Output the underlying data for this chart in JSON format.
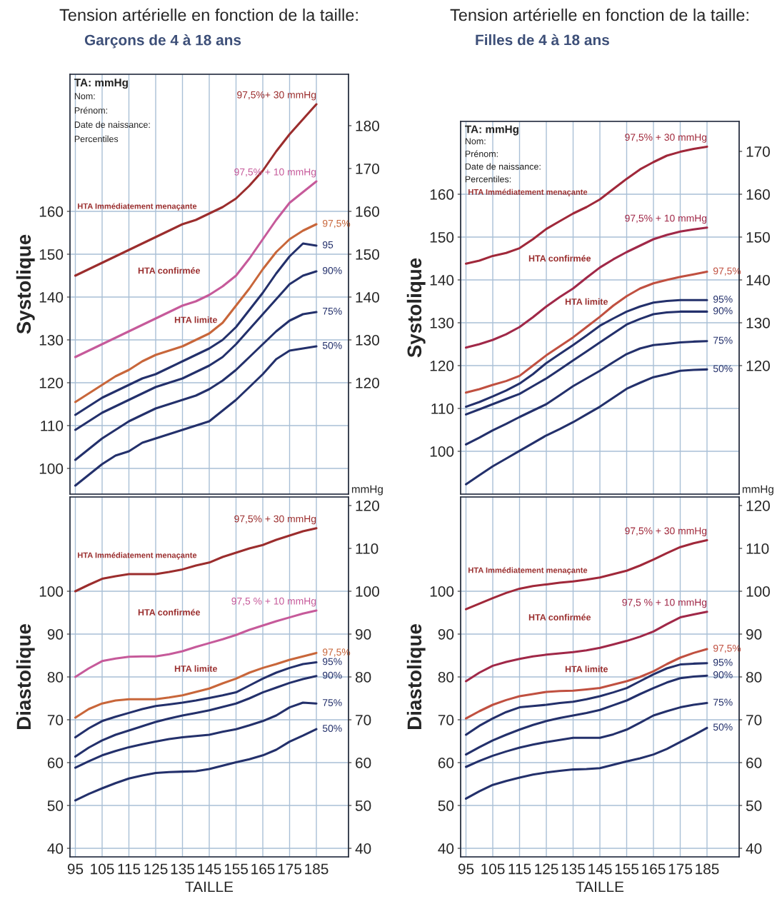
{
  "chart_data": [
    {
      "type": "line",
      "title": "Tension artérielle en fonction de la taille:",
      "subtitle": "Garçons de 4 à 18 ans",
      "ylabel": "Systolique",
      "x": [
        95,
        100,
        105,
        110,
        115,
        120,
        125,
        130,
        135,
        140,
        145,
        150,
        155,
        160,
        165,
        170,
        175,
        180,
        185
      ],
      "series": [
        {
          "name": "97,5%+ 30 mmHg",
          "color": "#9b2d2d",
          "values": [
            145,
            146.5,
            148,
            149.5,
            151,
            152.5,
            154,
            155.5,
            157,
            158,
            159.5,
            161,
            163,
            166,
            169.5,
            174,
            178,
            181.5,
            185
          ]
        },
        {
          "name": "97,5% + 10 mmHg",
          "color": "#c65a9a",
          "values": [
            126,
            127.5,
            129,
            130.5,
            132,
            133.5,
            135,
            136.5,
            138,
            139,
            140.5,
            142.5,
            145,
            149,
            153.5,
            158,
            162,
            164.5,
            167
          ]
        },
        {
          "name": "97,5%",
          "color": "#c8663a",
          "values": [
            115.5,
            117.5,
            119.5,
            121.5,
            123,
            125,
            126.5,
            127.5,
            128.5,
            130,
            131.5,
            134,
            138,
            142,
            146.5,
            150.5,
            153.5,
            155.5,
            157
          ]
        },
        {
          "name": "95",
          "color": "#23306b",
          "values": [
            112.5,
            114.5,
            116.5,
            118,
            119.5,
            121,
            122,
            123.5,
            125,
            126.5,
            128,
            130,
            133,
            137,
            141,
            145.5,
            149.5,
            152.5,
            152
          ]
        },
        {
          "name": "90%",
          "color": "#23306b",
          "values": [
            109,
            111,
            113,
            114.5,
            116,
            117.5,
            119,
            120,
            121,
            122.5,
            124,
            126,
            129,
            132.5,
            136,
            139.5,
            143,
            145,
            146
          ]
        },
        {
          "name": "75%",
          "color": "#23306b",
          "values": [
            102,
            104.5,
            107,
            109,
            111,
            112.5,
            114,
            115,
            116,
            117,
            118.5,
            120.5,
            123,
            126,
            129,
            132,
            134.5,
            136,
            136.5
          ]
        },
        {
          "name": "50%",
          "color": "#23306b",
          "values": [
            96,
            98.5,
            101,
            103,
            104,
            106,
            107,
            108,
            109,
            110,
            111,
            113.5,
            116,
            119,
            122,
            125.5,
            127.5,
            128,
            128.5
          ]
        }
      ],
      "xlim": [
        93,
        197
      ],
      "xticks": [
        95,
        105,
        115,
        125,
        135,
        145,
        155,
        165,
        175,
        185
      ],
      "ylim": [
        94,
        192
      ],
      "yticks": [
        100,
        110,
        120,
        130,
        140,
        150,
        160
      ],
      "y2lim": [
        94,
        192
      ],
      "y2ticks": [
        120,
        130,
        140,
        150,
        160,
        170,
        180
      ],
      "tick_labels": "y",
      "grid": true,
      "annotations": [
        "TA: mmHg",
        "Nom:",
        "Prénom:",
        "Date de naissance:",
        "Percentiles",
        "HTA Immédiatement menaçante",
        "HTA confirmée",
        "HTA limite"
      ]
    },
    {
      "type": "line",
      "ylabel": "Diastolique",
      "xlabel": "TAILLE",
      "y2label": "mmHg",
      "x": [
        95,
        100,
        105,
        110,
        115,
        120,
        125,
        130,
        135,
        140,
        145,
        150,
        155,
        160,
        165,
        170,
        175,
        180,
        185
      ],
      "series": [
        {
          "name": "97,5% + 30 mmHg",
          "color": "#9b2d2d",
          "values": [
            100,
            101.5,
            102.9,
            103.5,
            104,
            104,
            104,
            104.5,
            105.1,
            106,
            106.7,
            108,
            109,
            110,
            110.8,
            112,
            113,
            114,
            114.7
          ]
        },
        {
          "name": "97,5 % + 10 mmHg",
          "color": "#c65a9a",
          "values": [
            80,
            82,
            83.7,
            84.3,
            84.7,
            84.8,
            84.8,
            85.3,
            86,
            87,
            87.9,
            88.8,
            89.8,
            91,
            92,
            93,
            93.9,
            94.8,
            95.5
          ]
        },
        {
          "name": "97,5%",
          "color": "#c8663a",
          "values": [
            70.5,
            72.5,
            73.8,
            74.5,
            74.8,
            74.8,
            74.8,
            75.2,
            75.7,
            76.5,
            77.3,
            78.5,
            79.6,
            81,
            82.1,
            83,
            84,
            84.8,
            85.6
          ]
        },
        {
          "name": "95%",
          "color": "#23306b",
          "values": [
            65.9,
            68,
            69.7,
            70.7,
            71.6,
            72.5,
            73.2,
            73.6,
            74,
            74.5,
            75.1,
            75.7,
            76.4,
            78,
            79.6,
            81,
            82.1,
            83,
            83.4
          ]
        },
        {
          "name": "90%",
          "color": "#23306b",
          "values": [
            61.4,
            63.5,
            65.2,
            66.5,
            67.5,
            68.5,
            69.5,
            70.3,
            71,
            71.6,
            72.2,
            73,
            73.8,
            75,
            76.4,
            77.5,
            78.6,
            79.5,
            80.2
          ]
        },
        {
          "name": "75%",
          "color": "#23306b",
          "values": [
            58.8,
            60.3,
            61.7,
            62.7,
            63.6,
            64.3,
            64.9,
            65.5,
            65.9,
            66.2,
            66.5,
            67.2,
            67.8,
            68.7,
            69.7,
            71,
            72.9,
            74,
            73.8
          ]
        },
        {
          "name": "50%",
          "color": "#23306b",
          "values": [
            51.2,
            52.7,
            54,
            55.2,
            56.3,
            57,
            57.6,
            57.8,
            57.9,
            58,
            58.5,
            59.3,
            60.1,
            60.8,
            61.7,
            63,
            64.9,
            66.3,
            67.8
          ]
        }
      ],
      "xlim": [
        93,
        197
      ],
      "xticks": [
        95,
        105,
        115,
        125,
        135,
        145,
        155,
        165,
        175,
        185
      ],
      "ylim": [
        38,
        122
      ],
      "yticks": [
        40,
        50,
        60,
        70,
        80,
        90,
        100
      ],
      "y2lim": [
        38,
        122
      ],
      "y2ticks": [
        40,
        50,
        60,
        70,
        80,
        90,
        100,
        110,
        120
      ],
      "grid": true,
      "annotations": [
        "HTA Immédiatement menaçante",
        "HTA confirmée",
        "HTA limite"
      ]
    },
    {
      "type": "line",
      "title": "Tension artérielle en fonction de la taille:",
      "subtitle": "Filles de 4 à 18 ans",
      "ylabel": "Systolique",
      "x": [
        95,
        100,
        105,
        110,
        115,
        120,
        125,
        130,
        135,
        140,
        145,
        150,
        155,
        160,
        165,
        170,
        175,
        180,
        185
      ],
      "series": [
        {
          "name": "97,5% + 30 mmHg",
          "color": "#a0283a",
          "values": [
            143.8,
            144.5,
            145.6,
            146.3,
            147.4,
            149.5,
            151.9,
            153.7,
            155.5,
            157,
            158.8,
            161.2,
            163.6,
            165.8,
            167.5,
            169,
            169.9,
            170.6,
            171.1
          ]
        },
        {
          "name": "97,5% + 10 mmHg",
          "color": "#a02848",
          "values": [
            124.2,
            125,
            126,
            127.3,
            129,
            131.3,
            133.8,
            136,
            138,
            140.5,
            142.9,
            144.8,
            146.5,
            148,
            149.5,
            150.5,
            151.3,
            151.8,
            152.2
          ]
        },
        {
          "name": "97,5%",
          "color": "#c05040",
          "values": [
            113.7,
            114.5,
            115.5,
            116.4,
            117.6,
            120,
            122.4,
            124.5,
            126.6,
            129,
            131.4,
            134,
            136.2,
            138,
            139.2,
            140,
            140.7,
            141.3,
            141.9
          ]
        },
        {
          "name": "95%",
          "color": "#23306b",
          "values": [
            110.4,
            111.5,
            112.8,
            114.2,
            115.8,
            118,
            120.6,
            122.7,
            124.8,
            127,
            129.3,
            131,
            132.6,
            133.8,
            134.7,
            135.1,
            135.3,
            135.3,
            135.3
          ]
        },
        {
          "name": "90%",
          "color": "#23306b",
          "values": [
            108.6,
            109.8,
            111,
            112.2,
            113.4,
            115.2,
            117,
            119.1,
            121.2,
            123.3,
            125.4,
            127.5,
            129.6,
            130.9,
            132,
            132.4,
            132.6,
            132.6,
            132.6
          ]
        },
        {
          "name": "75%",
          "color": "#23306b",
          "values": [
            101.6,
            103.2,
            104.9,
            106.4,
            108,
            109.5,
            111,
            113.1,
            115.2,
            117,
            118.8,
            120.8,
            122.7,
            124,
            124.8,
            125.1,
            125.4,
            125.6,
            125.7
          ]
        },
        {
          "name": "50%",
          "color": "#23306b",
          "values": [
            92.3,
            94.4,
            96.5,
            98.3,
            100.1,
            101.9,
            103.7,
            105.2,
            106.8,
            108.6,
            110.4,
            112.5,
            114.6,
            116,
            117.3,
            118,
            118.8,
            119,
            119.1
          ]
        }
      ],
      "xlim": [
        93,
        197
      ],
      "xticks": [
        95,
        105,
        115,
        125,
        135,
        145,
        155,
        165,
        175,
        185
      ],
      "ylim": [
        90,
        177
      ],
      "yticks": [
        100,
        110,
        120,
        130,
        140,
        150,
        160
      ],
      "y2lim": [
        90,
        177
      ],
      "y2ticks": [
        120,
        130,
        140,
        150,
        160,
        170
      ],
      "tick_labels": "y",
      "grid": true,
      "annotations": [
        "TA: mmHg",
        "Nom:",
        "Prénom:",
        "Date de naissance:",
        "Percentiles:",
        "HTA Immédiatement menaçante",
        "HTA confirmée",
        "HTA limite"
      ]
    },
    {
      "type": "line",
      "ylabel": "Diastolique",
      "xlabel": "TAILLE",
      "y2label": "mmHg",
      "x": [
        95,
        100,
        105,
        110,
        115,
        120,
        125,
        130,
        135,
        140,
        145,
        150,
        155,
        160,
        165,
        170,
        175,
        180,
        185
      ],
      "series": [
        {
          "name": "97,5% + 30 mmHg",
          "color": "#a0283a",
          "values": [
            95.8,
            97.1,
            98.4,
            99.6,
            100.6,
            101.2,
            101.6,
            102,
            102.3,
            102.7,
            103.2,
            104,
            104.8,
            106,
            107.4,
            108.9,
            110.3,
            111.2,
            111.9
          ]
        },
        {
          "name": "97,5 % + 10 mmHg",
          "color": "#a02848",
          "values": [
            79,
            81,
            82.6,
            83.5,
            84.2,
            84.8,
            85.2,
            85.5,
            85.8,
            86.2,
            86.8,
            87.6,
            88.4,
            89.4,
            90.6,
            92.3,
            93.9,
            94.6,
            95.2
          ]
        },
        {
          "name": "97,5%",
          "color": "#c05040",
          "values": [
            70.3,
            72,
            73.5,
            74.6,
            75.5,
            76,
            76.5,
            76.7,
            76.8,
            77.1,
            77.4,
            78.2,
            79,
            80,
            81.3,
            83,
            84.5,
            85.6,
            86.5
          ]
        },
        {
          "name": "95%",
          "color": "#23306b",
          "values": [
            66.5,
            68.6,
            70.3,
            71.8,
            72.9,
            73.2,
            73.5,
            73.9,
            74.2,
            74.8,
            75.5,
            76.4,
            77.4,
            79,
            80.6,
            82,
            82.9,
            83.1,
            83.2
          ]
        },
        {
          "name": "90%",
          "color": "#23306b",
          "values": [
            61.9,
            63.6,
            65.2,
            66.5,
            67.7,
            68.8,
            69.7,
            70.4,
            71,
            71.6,
            72.3,
            73.4,
            74.5,
            76,
            77.4,
            78.7,
            79.7,
            80.1,
            80.3
          ]
        },
        {
          "name": "75%",
          "color": "#23306b",
          "values": [
            59,
            60.4,
            61.6,
            62.6,
            63.5,
            64.2,
            64.8,
            65.3,
            65.8,
            65.8,
            65.8,
            66.6,
            67.7,
            69.3,
            71,
            72,
            72.9,
            73.5,
            73.9
          ]
        },
        {
          "name": "50%",
          "color": "#23306b",
          "values": [
            51.6,
            53.3,
            54.8,
            55.7,
            56.5,
            57.2,
            57.7,
            58.1,
            58.4,
            58.5,
            58.7,
            59.5,
            60.3,
            61,
            61.9,
            63.2,
            64.8,
            66.4,
            68.1
          ]
        }
      ],
      "xlim": [
        93,
        197
      ],
      "xticks": [
        95,
        105,
        115,
        125,
        135,
        145,
        155,
        165,
        175,
        185
      ],
      "ylim": [
        38,
        122
      ],
      "yticks": [
        40,
        50,
        60,
        70,
        80,
        90,
        100
      ],
      "y2lim": [
        38,
        122
      ],
      "y2ticks": [
        40,
        50,
        60,
        70,
        80,
        90,
        100,
        110,
        120
      ],
      "grid": true,
      "annotations": [
        "HTA Immédiatement menaçante",
        "HTA confirmée",
        "HTA limite"
      ]
    }
  ]
}
